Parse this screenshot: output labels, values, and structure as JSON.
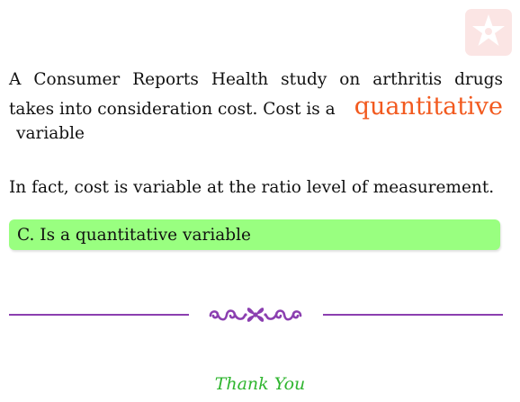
{
  "logo": {
    "icon": "star-flower-logo-icon",
    "color": "#e8403a"
  },
  "paragraph1": {
    "line1": [
      "A",
      "Consumer",
      "Reports",
      "Health",
      "study",
      "on",
      "arthritis",
      "drugs"
    ],
    "line2_prefix": "takes into consideration cost. Cost is a",
    "highlight": "quantitative",
    "line3": "variable"
  },
  "paragraph2": "In fact, cost is variable at the ratio level of measurement.",
  "answer": {
    "text": "C. Is a quantitative variable",
    "background": "#99ff80"
  },
  "divider": {
    "icon": "floral-ornament-icon",
    "color": "#8b3fb0"
  },
  "closing": {
    "text": "Thank You",
    "color": "#2fb52f"
  },
  "colors": {
    "highlight": "#f25a1f"
  }
}
